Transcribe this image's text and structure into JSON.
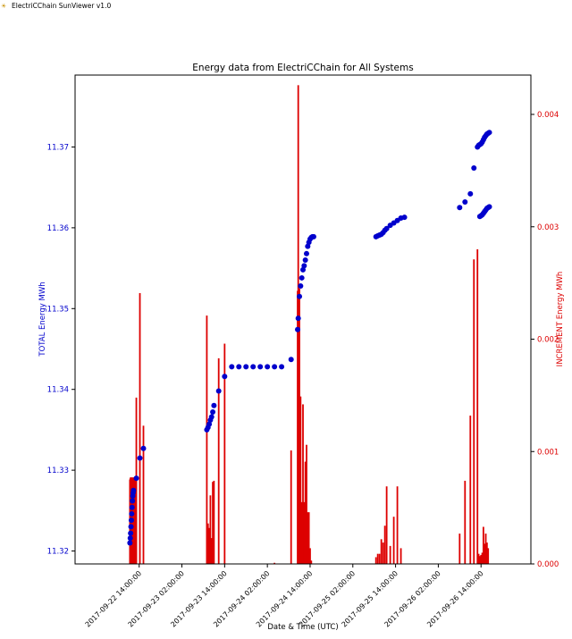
{
  "window": {
    "title": "ElectriCChain SunViewer v1.0",
    "icon": "sun-chain-icon"
  },
  "colors": {
    "total": "#0000cc",
    "increment": "#dd0000",
    "axis": "#000000"
  },
  "chart_data": {
    "type": "scatter+bar",
    "title": "Energy data from ElectriCChain for All Systems",
    "xlabel": "Date & Time (UTC)",
    "ylabel_left": "TOTAL Energy MWh",
    "ylabel_right": "INCREMENT Energy MWh",
    "x_range": [
      "2017-09-21 20:00",
      "2017-09-27 04:00"
    ],
    "ylim_left": [
      11.3184,
      11.3789
    ],
    "ylim_right": [
      0,
      0.00435
    ],
    "xticks": [
      {
        "t": "2017-09-22 14:00",
        "label": "2017-09-22 14:00:00"
      },
      {
        "t": "2017-09-23 02:00",
        "label": "2017-09-23 02:00:00"
      },
      {
        "t": "2017-09-23 14:00",
        "label": "2017-09-23 14:00:00"
      },
      {
        "t": "2017-09-24 02:00",
        "label": "2017-09-24 02:00:00"
      },
      {
        "t": "2017-09-24 14:00",
        "label": "2017-09-24 14:00:00"
      },
      {
        "t": "2017-09-25 02:00",
        "label": "2017-09-25 02:00:00"
      },
      {
        "t": "2017-09-25 14:00",
        "label": "2017-09-25 14:00:00"
      },
      {
        "t": "2017-09-26 02:00",
        "label": "2017-09-26 02:00:00"
      },
      {
        "t": "2017-09-26 14:00",
        "label": "2017-09-26 14:00:00"
      }
    ],
    "yticks_left": [
      "11.32",
      "11.33",
      "11.34",
      "11.35",
      "11.36",
      "11.37"
    ],
    "yticks_right": [
      "0.000",
      "0.001",
      "0.002",
      "0.003",
      "0.004"
    ],
    "series": [
      {
        "name": "TOTAL",
        "kind": "scatter",
        "points": [
          [
            "2017-09-22 11:24",
            11.321
          ],
          [
            "2017-09-22 11:30",
            11.3216
          ],
          [
            "2017-09-22 11:36",
            11.3222
          ],
          [
            "2017-09-22 11:42",
            11.323
          ],
          [
            "2017-09-22 11:48",
            11.3238
          ],
          [
            "2017-09-22 11:54",
            11.3246
          ],
          [
            "2017-09-22 12:00",
            11.3254
          ],
          [
            "2017-09-22 12:06",
            11.3262
          ],
          [
            "2017-09-22 12:12",
            11.3268
          ],
          [
            "2017-09-22 12:18",
            11.3272
          ],
          [
            "2017-09-22 12:24",
            11.3275
          ],
          [
            "2017-09-22 13:12",
            11.329
          ],
          [
            "2017-09-22 14:12",
            11.3315
          ],
          [
            "2017-09-22 15:12",
            11.3327
          ],
          [
            "2017-09-23 09:00",
            11.335
          ],
          [
            "2017-09-23 09:20",
            11.3353
          ],
          [
            "2017-09-23 09:40",
            11.3357
          ],
          [
            "2017-09-23 10:00",
            11.3362
          ],
          [
            "2017-09-23 10:20",
            11.3366
          ],
          [
            "2017-09-23 10:40",
            11.3372
          ],
          [
            "2017-09-23 11:00",
            11.338
          ],
          [
            "2017-09-23 12:20",
            11.3398
          ],
          [
            "2017-09-23 14:00",
            11.3416
          ],
          [
            "2017-09-23 16:00",
            11.3428
          ],
          [
            "2017-09-23 18:00",
            11.3428
          ],
          [
            "2017-09-23 20:00",
            11.3428
          ],
          [
            "2017-09-23 22:00",
            11.3428
          ],
          [
            "2017-09-24 00:00",
            11.3428
          ],
          [
            "2017-09-24 02:00",
            11.3428
          ],
          [
            "2017-09-24 04:00",
            11.3428
          ],
          [
            "2017-09-24 06:00",
            11.3428
          ],
          [
            "2017-09-24 08:40",
            11.3437
          ],
          [
            "2017-09-24 10:30",
            11.3474
          ],
          [
            "2017-09-24 10:40",
            11.3488
          ],
          [
            "2017-09-24 11:00",
            11.3515
          ],
          [
            "2017-09-24 11:20",
            11.3528
          ],
          [
            "2017-09-24 11:40",
            11.3538
          ],
          [
            "2017-09-24 12:00",
            11.3548
          ],
          [
            "2017-09-24 12:20",
            11.3553
          ],
          [
            "2017-09-24 12:40",
            11.356
          ],
          [
            "2017-09-24 13:00",
            11.3568
          ],
          [
            "2017-09-24 13:20",
            11.3577
          ],
          [
            "2017-09-24 13:40",
            11.3582
          ],
          [
            "2017-09-24 14:00",
            11.3586
          ],
          [
            "2017-09-24 14:20",
            11.3588
          ],
          [
            "2017-09-24 14:40",
            11.3589
          ],
          [
            "2017-09-24 15:00",
            11.3589
          ],
          [
            "2017-09-25 08:30",
            11.3589
          ],
          [
            "2017-09-25 09:00",
            11.359
          ],
          [
            "2017-09-25 09:30",
            11.3591
          ],
          [
            "2017-09-25 10:00",
            11.3592
          ],
          [
            "2017-09-25 10:30",
            11.3594
          ],
          [
            "2017-09-25 11:00",
            11.3597
          ],
          [
            "2017-09-25 11:30",
            11.3599
          ],
          [
            "2017-09-25 12:30",
            11.3603
          ],
          [
            "2017-09-25 13:30",
            11.3606
          ],
          [
            "2017-09-25 14:30",
            11.3609
          ],
          [
            "2017-09-25 15:30",
            11.3612
          ],
          [
            "2017-09-25 16:30",
            11.3613
          ],
          [
            "2017-09-26 08:00",
            11.3625
          ],
          [
            "2017-09-26 09:30",
            11.3632
          ],
          [
            "2017-09-26 11:00",
            11.3642
          ],
          [
            "2017-09-26 12:00",
            11.3674
          ],
          [
            "2017-09-26 13:00",
            11.37
          ],
          [
            "2017-09-26 13:20",
            11.3702
          ],
          [
            "2017-09-26 13:40",
            11.3703
          ],
          [
            "2017-09-26 14:00",
            11.3704
          ],
          [
            "2017-09-26 14:20",
            11.3706
          ],
          [
            "2017-09-26 14:40",
            11.3709
          ],
          [
            "2017-09-26 15:00",
            11.3712
          ],
          [
            "2017-09-26 15:20",
            11.3714
          ],
          [
            "2017-09-26 15:40",
            11.3716
          ],
          [
            "2017-09-26 16:00",
            11.3717
          ],
          [
            "2017-09-26 16:20",
            11.3718
          ],
          [
            "2017-09-26 13:40",
            11.3614
          ],
          [
            "2017-09-26 14:00",
            11.3615
          ],
          [
            "2017-09-26 14:20",
            11.3616
          ],
          [
            "2017-09-26 14:40",
            11.3618
          ],
          [
            "2017-09-26 15:00",
            11.362
          ],
          [
            "2017-09-26 15:20",
            11.3622
          ],
          [
            "2017-09-26 15:40",
            11.3624
          ],
          [
            "2017-09-26 16:00",
            11.3625
          ],
          [
            "2017-09-26 16:20",
            11.3626
          ]
        ]
      },
      {
        "name": "INCREMENT",
        "kind": "bar",
        "bars": [
          [
            "2017-09-22 11:24",
            0.00075
          ],
          [
            "2017-09-22 11:30",
            0.00076
          ],
          [
            "2017-09-22 11:36",
            0.00077
          ],
          [
            "2017-09-22 11:42",
            0.00075
          ],
          [
            "2017-09-22 11:48",
            0.00076
          ],
          [
            "2017-09-22 11:54",
            0.00077
          ],
          [
            "2017-09-22 12:00",
            0.00076
          ],
          [
            "2017-09-22 12:06",
            0.00075
          ],
          [
            "2017-09-22 12:12",
            0.00076
          ],
          [
            "2017-09-22 12:18",
            0.00077
          ],
          [
            "2017-09-22 12:24",
            0.00076
          ],
          [
            "2017-09-22 12:30",
            0.00075
          ],
          [
            "2017-09-22 12:36",
            0.00076
          ],
          [
            "2017-09-22 12:42",
            0.00077
          ],
          [
            "2017-09-22 12:48",
            0.00076
          ],
          [
            "2017-09-22 12:54",
            0.00075
          ],
          [
            "2017-09-22 13:00",
            0.00076
          ],
          [
            "2017-09-22 13:12",
            0.00148
          ],
          [
            "2017-09-22 14:12",
            0.00241
          ],
          [
            "2017-09-22 15:12",
            0.00123
          ],
          [
            "2017-09-23 09:00",
            0.00221
          ],
          [
            "2017-09-23 09:20",
            0.00036
          ],
          [
            "2017-09-23 09:40",
            0.00032
          ],
          [
            "2017-09-23 10:00",
            0.00061
          ],
          [
            "2017-09-23 10:20",
            0.00023
          ],
          [
            "2017-09-23 10:40",
            0.00073
          ],
          [
            "2017-09-23 11:00",
            0.00074
          ],
          [
            "2017-09-23 12:20",
            0.00183
          ],
          [
            "2017-09-23 14:00",
            0.00196
          ],
          [
            "2017-09-24 04:00",
            1e-05
          ],
          [
            "2017-09-24 08:40",
            0.00101
          ],
          [
            "2017-09-24 10:30",
            0.00243
          ],
          [
            "2017-09-24 10:40",
            0.00426
          ],
          [
            "2017-09-24 11:00",
            0.00245
          ],
          [
            "2017-09-24 11:20",
            0.00149
          ],
          [
            "2017-09-24 11:40",
            0.00055
          ],
          [
            "2017-09-24 12:00",
            0.00142
          ],
          [
            "2017-09-24 12:20",
            0.00055
          ],
          [
            "2017-09-24 12:40",
            0.00091
          ],
          [
            "2017-09-24 13:00",
            0.00106
          ],
          [
            "2017-09-24 13:20",
            0.00046
          ],
          [
            "2017-09-24 13:40",
            0.00046
          ],
          [
            "2017-09-24 14:00",
            0.00014
          ],
          [
            "2017-09-24 14:20",
            3e-05
          ],
          [
            "2017-09-25 08:30",
            6e-05
          ],
          [
            "2017-09-25 09:00",
            9e-05
          ],
          [
            "2017-09-25 09:30",
            9e-05
          ],
          [
            "2017-09-25 10:00",
            0.00022
          ],
          [
            "2017-09-25 10:30",
            0.00019
          ],
          [
            "2017-09-25 11:00",
            0.00034
          ],
          [
            "2017-09-25 11:30",
            0.00069
          ],
          [
            "2017-09-25 12:30",
            0.00016
          ],
          [
            "2017-09-25 13:30",
            0.00042
          ],
          [
            "2017-09-25 14:30",
            0.00069
          ],
          [
            "2017-09-25 15:30",
            0.00014
          ],
          [
            "2017-09-26 08:00",
            0.00027
          ],
          [
            "2017-09-26 09:30",
            0.00074
          ],
          [
            "2017-09-26 11:00",
            0.00132
          ],
          [
            "2017-09-26 12:00",
            0.00271
          ],
          [
            "2017-09-26 13:00",
            0.0028
          ],
          [
            "2017-09-26 13:20",
            9e-05
          ],
          [
            "2017-09-26 13:40",
            7e-05
          ],
          [
            "2017-09-26 14:00",
            8e-05
          ],
          [
            "2017-09-26 14:20",
            0.0001
          ],
          [
            "2017-09-26 14:40",
            0.00033
          ],
          [
            "2017-09-26 15:00",
            0.00018
          ],
          [
            "2017-09-26 15:20",
            0.00027
          ],
          [
            "2017-09-26 15:40",
            0.00019
          ],
          [
            "2017-09-26 16:00",
            0.00014
          ]
        ]
      }
    ]
  }
}
